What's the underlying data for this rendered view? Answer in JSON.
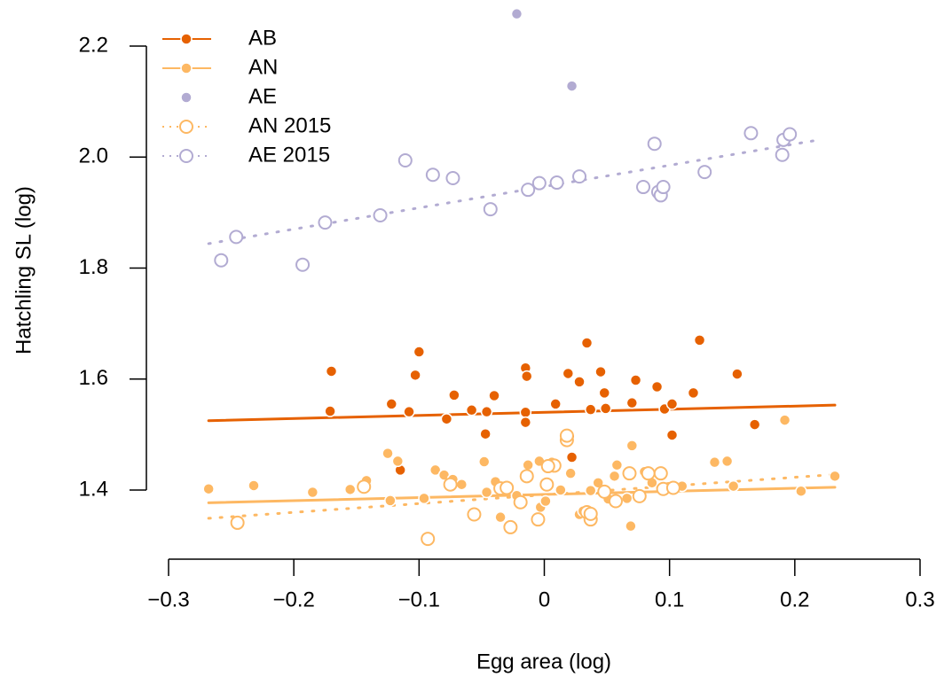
{
  "chart_data": {
    "type": "scatter",
    "x_label": "Egg area (log)",
    "y_label": "Hatchling SL (log)",
    "xlim": [
      -0.3,
      0.3
    ],
    "ylim": [
      1.277,
      2.283
    ],
    "xticks": [
      {
        "value": -0.3,
        "label": "−0.3"
      },
      {
        "value": -0.2,
        "label": "−0.2"
      },
      {
        "value": -0.1,
        "label": "−0.1"
      },
      0,
      0.1,
      0.2,
      0.3
    ],
    "yticks": [
      1.4,
      1.6,
      1.8,
      2.0,
      2.2
    ],
    "legend": "top-left",
    "series": [
      {
        "name": "AB",
        "color": "#e66101",
        "marker": "filled",
        "line": "solid",
        "x": [
          -0.17,
          -0.171,
          -0.122,
          -0.108,
          -0.103,
          -0.1,
          -0.115,
          -0.078,
          -0.072,
          -0.058,
          -0.047,
          -0.046,
          -0.04,
          -0.015,
          -0.014,
          -0.015,
          -0.015,
          0.009,
          0.019,
          0.02,
          0.022,
          0.028,
          0.034,
          0.037,
          0.045,
          0.048,
          0.049,
          0.07,
          0.073,
          0.09,
          0.096,
          0.102,
          0.102,
          0.119,
          0.124,
          0.154,
          0.168
        ],
        "y": [
          1.614,
          1.542,
          1.555,
          1.541,
          1.607,
          1.649,
          1.436,
          1.528,
          1.571,
          1.544,
          1.501,
          1.541,
          1.57,
          1.62,
          1.605,
          1.54,
          1.522,
          1.555,
          1.61,
          1.497,
          1.459,
          1.595,
          1.665,
          1.545,
          1.613,
          1.575,
          1.547,
          1.557,
          1.598,
          1.586,
          1.546,
          1.499,
          1.555,
          1.575,
          1.67,
          1.609,
          1.518
        ],
        "fit": {
          "x": [
            -0.268,
            0.232
          ],
          "y": [
            1.525,
            1.553
          ]
        }
      },
      {
        "name": "AN",
        "color": "#fdb863",
        "marker": "filled",
        "line": "solid",
        "x": [
          -0.268,
          -0.232,
          -0.185,
          -0.155,
          -0.142,
          -0.125,
          -0.117,
          -0.123,
          -0.096,
          -0.087,
          -0.08,
          -0.073,
          -0.066,
          -0.048,
          -0.046,
          -0.039,
          -0.035,
          -0.022,
          -0.013,
          -0.004,
          -0.003,
          0.001,
          0.006,
          0.013,
          0.021,
          0.028,
          0.031,
          0.037,
          0.043,
          0.051,
          0.056,
          0.058,
          0.066,
          0.069,
          0.07,
          0.08,
          0.086,
          0.099,
          0.11,
          0.136,
          0.146,
          0.151,
          0.192,
          0.205,
          0.232
        ],
        "y": [
          1.402,
          1.408,
          1.396,
          1.401,
          1.417,
          1.466,
          1.452,
          1.381,
          1.385,
          1.436,
          1.427,
          1.419,
          1.41,
          1.451,
          1.396,
          1.415,
          1.351,
          1.39,
          1.445,
          1.452,
          1.369,
          1.38,
          1.45,
          1.4,
          1.43,
          1.356,
          1.362,
          1.399,
          1.413,
          1.384,
          1.425,
          1.445,
          1.385,
          1.335,
          1.48,
          1.433,
          1.413,
          1.406,
          1.407,
          1.45,
          1.452,
          1.407,
          1.526,
          1.398,
          1.425
        ],
        "fit": {
          "x": [
            -0.268,
            0.232
          ],
          "y": [
            1.377,
            1.405
          ]
        }
      },
      {
        "name": "AE",
        "color": "#b2abd2",
        "marker": "filled",
        "x": [
          -0.022,
          0.022
        ],
        "y": [
          2.258,
          2.128
        ]
      },
      {
        "name": "AN 2015",
        "color": "#fdb863",
        "marker": "open",
        "line": "dotted",
        "x": [
          -0.245,
          -0.144,
          -0.093,
          -0.075,
          -0.056,
          -0.035,
          -0.03,
          -0.019,
          -0.027,
          -0.005,
          0.002,
          0.008,
          0.003,
          0.018,
          0.018,
          0.034,
          0.037,
          0.037,
          0.048,
          0.057,
          0.068,
          0.076,
          0.083,
          0.093,
          0.095,
          0.103,
          -0.014
        ],
        "y": [
          1.341,
          1.406,
          1.312,
          1.41,
          1.356,
          1.403,
          1.404,
          1.378,
          1.333,
          1.347,
          1.41,
          1.444,
          1.443,
          1.49,
          1.498,
          1.36,
          1.347,
          1.357,
          1.397,
          1.38,
          1.43,
          1.389,
          1.43,
          1.43,
          1.402,
          1.404,
          1.425
        ],
        "fit": {
          "x": [
            -0.268,
            0.232
          ],
          "y": [
            1.349,
            1.428
          ]
        }
      },
      {
        "name": "AE 2015",
        "color": "#b2abd2",
        "marker": "open",
        "line": "dotted",
        "x": [
          -0.258,
          -0.246,
          -0.193,
          -0.175,
          -0.131,
          -0.111,
          -0.089,
          -0.073,
          -0.043,
          -0.013,
          -0.004,
          0.01,
          0.028,
          0.079,
          0.088,
          0.091,
          0.093,
          0.095,
          0.128,
          0.165,
          0.19,
          0.191,
          0.196
        ],
        "y": [
          1.814,
          1.856,
          1.806,
          1.882,
          1.895,
          1.994,
          1.968,
          1.962,
          1.906,
          1.941,
          1.953,
          1.954,
          1.965,
          1.946,
          2.024,
          1.937,
          1.931,
          1.946,
          1.973,
          2.043,
          2.004,
          2.031,
          2.041
        ],
        "fit": {
          "x": [
            -0.268,
            0.222
          ],
          "y": [
            1.844,
            2.032
          ]
        }
      }
    ]
  }
}
